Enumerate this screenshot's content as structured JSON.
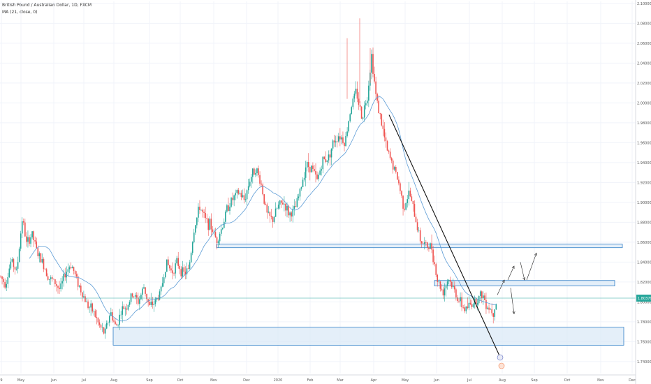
{
  "legend": {
    "symbol_line": "British Pound / Australian Dollar, 1D, FXCM",
    "indicator_line": "MA (21, close, 0)"
  },
  "chart_data": {
    "type": "candlestick",
    "price_axis": {
      "ticks": [
        "2.10000",
        "2.08000",
        "2.06000",
        "2.04000",
        "2.02000",
        "2.00000",
        "1.98000",
        "1.96000",
        "1.94000",
        "1.92000",
        "1.90000",
        "1.88000",
        "1.86000",
        "1.84000",
        "1.82000",
        "1.80000",
        "1.78000",
        "1.76000",
        "1.74000"
      ],
      "range": [
        1.728,
        2.102
      ]
    },
    "time_axis": {
      "labels": [
        "9",
        "May",
        "Jun",
        "Jul",
        "Aug",
        "Sep",
        "Oct",
        "Nov",
        "Dec",
        "2020",
        "Feb",
        "Mar",
        "Apr",
        "May",
        "Jun",
        "Jul",
        "Aug",
        "Sep",
        "Oct",
        "Nov",
        "Dec"
      ]
    },
    "current_price": {
      "value": 1.80379,
      "label": "1.80379",
      "color": "#26a69a"
    },
    "series_path": [
      [
        0,
        1.826
      ],
      [
        8,
        1.818
      ],
      [
        16,
        1.842
      ],
      [
        24,
        1.83
      ],
      [
        32,
        1.885
      ],
      [
        38,
        1.858
      ],
      [
        46,
        1.868
      ],
      [
        54,
        1.848
      ],
      [
        62,
        1.838
      ],
      [
        70,
        1.824
      ],
      [
        78,
        1.82
      ],
      [
        86,
        1.812
      ],
      [
        94,
        1.83
      ],
      [
        102,
        1.838
      ],
      [
        110,
        1.822
      ],
      [
        118,
        1.808
      ],
      [
        126,
        1.796
      ],
      [
        134,
        1.79
      ],
      [
        142,
        1.776
      ],
      [
        150,
        1.768
      ],
      [
        158,
        1.79
      ],
      [
        166,
        1.774
      ],
      [
        174,
        1.792
      ],
      [
        182,
        1.796
      ],
      [
        190,
        1.808
      ],
      [
        198,
        1.8
      ],
      [
        206,
        1.815
      ],
      [
        214,
        1.795
      ],
      [
        222,
        1.8
      ],
      [
        230,
        1.81
      ],
      [
        238,
        1.84
      ],
      [
        246,
        1.83
      ],
      [
        254,
        1.84
      ],
      [
        262,
        1.828
      ],
      [
        270,
        1.832
      ],
      [
        278,
        1.874
      ],
      [
        286,
        1.896
      ],
      [
        294,
        1.882
      ],
      [
        302,
        1.876
      ],
      [
        310,
        1.862
      ],
      [
        318,
        1.875
      ],
      [
        326,
        1.896
      ],
      [
        334,
        1.904
      ],
      [
        342,
        1.91
      ],
      [
        350,
        1.902
      ],
      [
        358,
        1.924
      ],
      [
        366,
        1.935
      ],
      [
        374,
        1.918
      ],
      [
        382,
        1.888
      ],
      [
        390,
        1.882
      ],
      [
        398,
        1.896
      ],
      [
        406,
        1.9
      ],
      [
        414,
        1.888
      ],
      [
        422,
        1.892
      ],
      [
        430,
        1.912
      ],
      [
        438,
        1.938
      ],
      [
        446,
        1.935
      ],
      [
        454,
        1.922
      ],
      [
        462,
        1.942
      ],
      [
        470,
        1.945
      ],
      [
        478,
        1.962
      ],
      [
        486,
        1.968
      ],
      [
        494,
        1.96
      ],
      [
        502,
        1.995
      ],
      [
        510,
        2.012
      ],
      [
        518,
        1.985
      ],
      [
        526,
        2.008
      ],
      [
        532,
        2.048
      ],
      [
        538,
        2.008
      ],
      [
        546,
        1.98
      ],
      [
        554,
        1.952
      ],
      [
        562,
        1.938
      ],
      [
        570,
        1.922
      ],
      [
        578,
        1.895
      ],
      [
        586,
        1.91
      ],
      [
        594,
        1.886
      ],
      [
        602,
        1.862
      ],
      [
        610,
        1.856
      ],
      [
        618,
        1.855
      ],
      [
        626,
        1.822
      ],
      [
        634,
        1.81
      ],
      [
        642,
        1.824
      ],
      [
        650,
        1.812
      ],
      [
        658,
        1.8
      ],
      [
        666,
        1.792
      ],
      [
        674,
        1.798
      ],
      [
        682,
        1.802
      ],
      [
        690,
        1.808
      ],
      [
        698,
        1.796
      ],
      [
        706,
        1.79
      ],
      [
        712,
        1.804
      ]
    ],
    "zones": [
      {
        "name": "upper-resistance-zone",
        "y_top": 1.858,
        "y_bottom": 1.8545
      },
      {
        "name": "middle-resistance-zone",
        "y_top": 1.8215,
        "y_bottom": 1.816
      },
      {
        "name": "lower-support-zone",
        "y_top": 1.7745,
        "y_bottom": 1.7565
      }
    ],
    "colors": {
      "up": "#26a69a",
      "down": "#ef5350",
      "ma": "#5b9bd5",
      "zone_fill": "#dbe9f7",
      "zone_border": "#2f7ec7",
      "grid": "#f0f3fa",
      "trendline": "#111111"
    }
  }
}
